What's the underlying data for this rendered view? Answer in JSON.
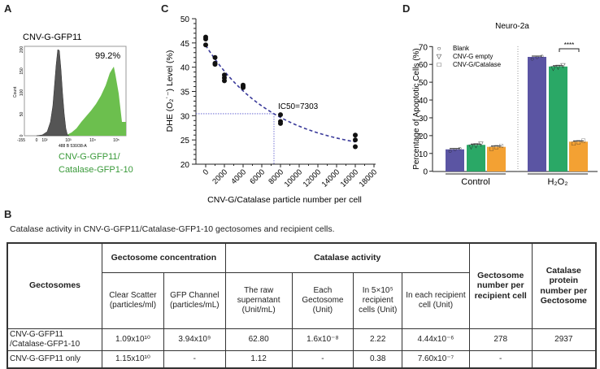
{
  "panels": {
    "a": "A",
    "b": "B",
    "c": "C",
    "d": "D"
  },
  "chart_data": [
    {
      "panel": "A",
      "type": "area",
      "title": "CNV-G-GFP11",
      "percent_label": "99.2%",
      "ylabel": "Count",
      "xlabel": "488 B 530/38-A",
      "yticks": [
        "0",
        "50",
        "100",
        "150",
        "200"
      ],
      "xticks": [
        "-155",
        "0",
        "10²",
        "10³",
        "10⁴",
        "10⁵"
      ],
      "series_label_1": "CNV-G-GFP11/",
      "series_label_2": "Catalase-GFP1-10",
      "colors": {
        "control": "#555555",
        "sample": "#6cbf4e"
      }
    },
    {
      "panel": "C",
      "type": "scatter",
      "xlabel": "CNV-G/Catalase particle number per cell",
      "ylabel": "DHE (O₂˙⁻) Level (%)",
      "xlim": [
        0,
        18000
      ],
      "ylim": [
        20,
        50
      ],
      "xticks": [
        0,
        2000,
        4000,
        6000,
        8000,
        10000,
        12000,
        14000,
        16000,
        18000
      ],
      "yticks": [
        20,
        25,
        30,
        35,
        40,
        45,
        50
      ],
      "points": [
        [
          0,
          46.2
        ],
        [
          0,
          45.8
        ],
        [
          0,
          44.6
        ],
        [
          1000,
          42.0
        ],
        [
          1000,
          40.8
        ],
        [
          1000,
          40.6
        ],
        [
          2000,
          38.4
        ],
        [
          2000,
          37.8
        ],
        [
          2000,
          37.2
        ],
        [
          4000,
          36.3
        ],
        [
          4000,
          36.0
        ],
        [
          4000,
          35.8
        ],
        [
          8000,
          30.2
        ],
        [
          8000,
          28.8
        ],
        [
          8000,
          28.4
        ],
        [
          16000,
          26.0
        ],
        [
          16000,
          25.0
        ],
        [
          16000,
          23.6
        ]
      ],
      "fit": {
        "plateau": 22,
        "y0": 44.5,
        "k": 0.000135
      },
      "ic50": 7303,
      "ic50_y": 30.4,
      "annotation": "IC50=7303",
      "curve_color": "#3a3a9a"
    },
    {
      "panel": "D",
      "type": "bar",
      "title": "Neuro-2a",
      "ylabel": "Percentage of Apoptotic Cells (%)",
      "ylim": [
        0,
        70
      ],
      "yticks": [
        0,
        10,
        20,
        30,
        40,
        50,
        60,
        70
      ],
      "categories": [
        "Control",
        "H₂O₂"
      ],
      "series": [
        {
          "name": "Blank",
          "marker": "○",
          "color": "#5b55a3",
          "values": [
            12.3,
            64.2
          ]
        },
        {
          "name": "CNV-G empty",
          "marker": "▽",
          "color": "#2aa866",
          "values": [
            14.8,
            58.8
          ]
        },
        {
          "name": "CNV-G/Catalase",
          "marker": "□",
          "color": "#f3a133",
          "values": [
            13.7,
            16.6
          ]
        }
      ],
      "significance": "****"
    }
  ],
  "table": {
    "caption": "Catalase activity in CNV-G-GFP11/Catalase-GFP1-10 gectosomes and recipient cells.",
    "h_gectosomes": "Gectosomes",
    "h_concentration": "Gectosome concentration",
    "h_activity": "Catalase activity",
    "h_number": "Gectosome number per recipient cell",
    "h_protein": "Catalase protein number per Gectosome",
    "sub": [
      "Clear Scatter (particles/ml)",
      "GFP Channel (particles/mL)",
      "The raw supernatant (Unit/mL)",
      "Each Gectosome (Unit)",
      "In 5×10⁵ recipient cells (Unit)",
      "In each recipient cell (Unit)"
    ],
    "rows": [
      [
        "CNV-G-GFP11 /Catalase-GFP1-10",
        "1.09x10¹⁰",
        "3.94x10⁹",
        "62.80",
        "1.6x10⁻⁸",
        "2.22",
        "4.44x10⁻⁶",
        "278",
        "2937"
      ],
      [
        "CNV-G-GFP11 only",
        "1.15x10¹⁰",
        "-",
        "1.12",
        "-",
        "0.38",
        "7.60x10⁻⁷",
        "-",
        ""
      ]
    ]
  }
}
